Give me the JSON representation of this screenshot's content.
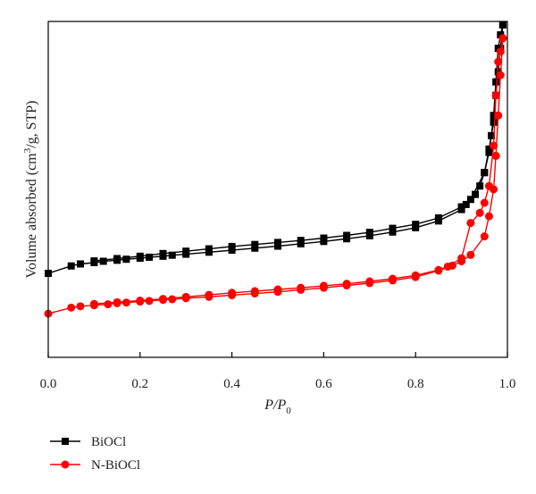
{
  "chart_data": {
    "type": "line",
    "xlabel": {
      "base": "P/P",
      "subscript": "0"
    },
    "ylabel": {
      "before": "Volume absorbed (cm",
      "superscript": "3",
      "after": "/g, STP)"
    },
    "xlim": [
      0.0,
      1.0
    ],
    "ylim": [
      0,
      100
    ],
    "x_ticks": [
      "0.0",
      "0.2",
      "0.4",
      "0.6",
      "0.8",
      "1.0"
    ],
    "y_ticks": [],
    "legend_position": "bottom-left",
    "series": [
      {
        "name": "BiOCl",
        "color": "#000000",
        "marker": "square",
        "branches": [
          {
            "x": [
              0.0,
              0.05,
              0.07,
              0.1,
              0.12,
              0.15,
              0.17,
              0.2,
              0.22,
              0.25,
              0.27,
              0.3,
              0.35,
              0.4,
              0.45,
              0.5,
              0.55,
              0.6,
              0.65,
              0.7,
              0.75,
              0.8,
              0.85,
              0.9,
              0.92,
              0.95,
              0.96,
              0.97,
              0.975,
              0.98,
              0.985,
              0.99
            ],
            "y": [
              25.0,
              27.2,
              27.8,
              28.2,
              28.6,
              28.9,
              29.2,
              29.5,
              29.8,
              30.1,
              30.4,
              30.7,
              31.3,
              31.9,
              32.5,
              33.1,
              33.8,
              34.5,
              35.3,
              36.2,
              37.3,
              38.6,
              40.6,
              44.0,
              47.0,
              55.0,
              62.0,
              70.0,
              78.0,
              85.0,
              92.0,
              99.0
            ]
          },
          {
            "x": [
              0.99,
              0.985,
              0.98,
              0.975,
              0.97,
              0.965,
              0.96,
              0.95,
              0.94,
              0.93,
              0.91,
              0.9,
              0.85,
              0.8,
              0.75,
              0.7,
              0.65,
              0.6,
              0.55,
              0.5,
              0.45,
              0.4,
              0.35,
              0.3,
              0.25,
              0.2,
              0.15,
              0.1
            ],
            "y": [
              99.0,
              96.0,
              92.0,
              82.0,
              72.0,
              66.0,
              61.0,
              55.0,
              51.0,
              48.5,
              45.5,
              44.8,
              41.5,
              39.6,
              38.4,
              37.2,
              36.3,
              35.5,
              34.8,
              34.2,
              33.6,
              33.0,
              32.3,
              31.6,
              30.9,
              30.1,
              29.4,
              28.7
            ]
          }
        ]
      },
      {
        "name": "N-BiOCl",
        "color": "#ff0000",
        "marker": "circle",
        "branches": [
          {
            "x": [
              0.0,
              0.05,
              0.07,
              0.1,
              0.13,
              0.15,
              0.17,
              0.2,
              0.22,
              0.25,
              0.27,
              0.3,
              0.35,
              0.4,
              0.45,
              0.5,
              0.55,
              0.6,
              0.65,
              0.7,
              0.75,
              0.8,
              0.85,
              0.88,
              0.9,
              0.92,
              0.95,
              0.96,
              0.97,
              0.975,
              0.98,
              0.985,
              0.99
            ],
            "y": [
              13.0,
              14.8,
              15.2,
              15.5,
              15.8,
              16.1,
              16.3,
              16.6,
              16.8,
              17.1,
              17.3,
              17.6,
              18.0,
              18.5,
              19.0,
              19.5,
              20.1,
              20.7,
              21.4,
              22.1,
              22.9,
              23.9,
              25.8,
              27.3,
              28.6,
              30.5,
              36.0,
              42.0,
              50.0,
              60.0,
              72.0,
              84.0,
              95.0
            ]
          },
          {
            "x": [
              0.99,
              0.985,
              0.98,
              0.975,
              0.97,
              0.96,
              0.95,
              0.94,
              0.92,
              0.9,
              0.87,
              0.85,
              0.8,
              0.75,
              0.7,
              0.65,
              0.6,
              0.55,
              0.5,
              0.45,
              0.4,
              0.35,
              0.3,
              0.25,
              0.2,
              0.15,
              0.1
            ],
            "y": [
              95.0,
              91.0,
              88.0,
              78.0,
              63.0,
              51.0,
              46.0,
              43.0,
              40.0,
              29.5,
              27.0,
              26.0,
              24.4,
              23.4,
              22.6,
              21.9,
              21.3,
              20.7,
              20.2,
              19.7,
              19.2,
              18.6,
              18.0,
              17.4,
              16.9,
              16.4,
              15.9
            ]
          }
        ]
      }
    ]
  }
}
